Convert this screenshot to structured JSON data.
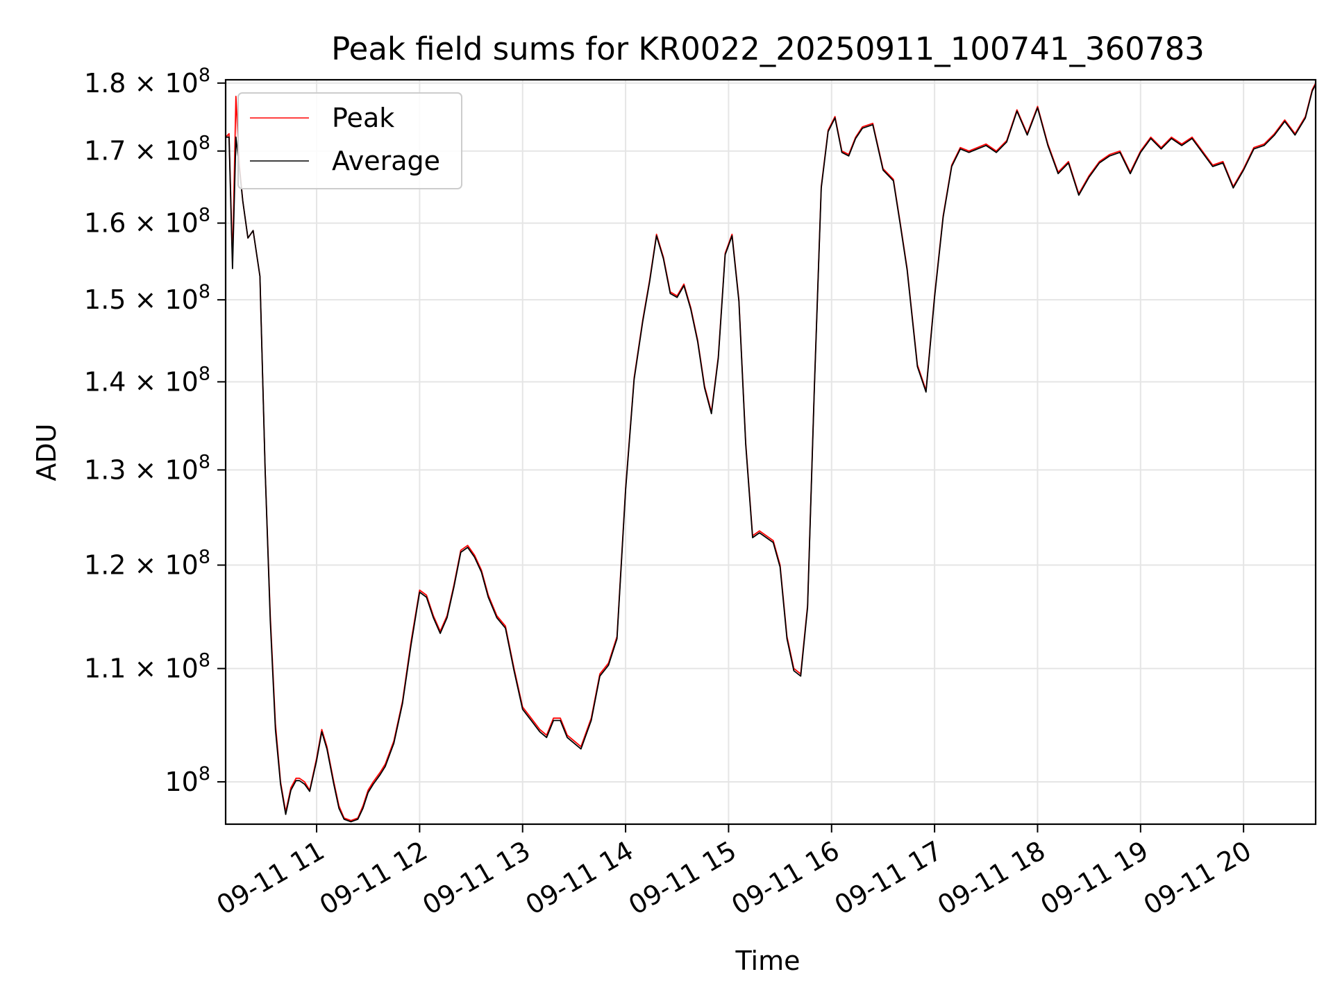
{
  "chart_data": {
    "type": "line",
    "title": "Peak field sums for KR0022_20250911_100741_360783",
    "xlabel": "Time",
    "ylabel": "ADU",
    "x_scale": "time",
    "y_scale": "log",
    "xlim": [
      "2025-09-11 10:07",
      "2025-09-11 20:42"
    ],
    "ylim": [
      96500000,
      180500000
    ],
    "grid": true,
    "legend_position": "upper-left",
    "x_ticks": [
      {
        "value": "2025-09-11 11:00",
        "label": "09-11 11"
      },
      {
        "value": "2025-09-11 12:00",
        "label": "09-11 12"
      },
      {
        "value": "2025-09-11 13:00",
        "label": "09-11 13"
      },
      {
        "value": "2025-09-11 14:00",
        "label": "09-11 14"
      },
      {
        "value": "2025-09-11 15:00",
        "label": "09-11 15"
      },
      {
        "value": "2025-09-11 16:00",
        "label": "09-11 16"
      },
      {
        "value": "2025-09-11 17:00",
        "label": "09-11 17"
      },
      {
        "value": "2025-09-11 18:00",
        "label": "09-11 18"
      },
      {
        "value": "2025-09-11 19:00",
        "label": "09-11 19"
      },
      {
        "value": "2025-09-11 20:00",
        "label": "09-11 20"
      }
    ],
    "y_ticks": [
      {
        "value": 100000000,
        "base": "10",
        "exp": "8"
      },
      {
        "value": 110000000,
        "base": "1.1 × 10",
        "exp": "8"
      },
      {
        "value": 120000000,
        "base": "1.2 × 10",
        "exp": "8"
      },
      {
        "value": 130000000,
        "base": "1.3 × 10",
        "exp": "8"
      },
      {
        "value": 140000000,
        "base": "1.4 × 10",
        "exp": "8"
      },
      {
        "value": 150000000,
        "base": "1.5 × 10",
        "exp": "8"
      },
      {
        "value": 160000000,
        "base": "1.6 × 10",
        "exp": "8"
      },
      {
        "value": 170000000,
        "base": "1.7 × 10",
        "exp": "8"
      },
      {
        "value": 180000000,
        "base": "1.8 × 10",
        "exp": "8"
      }
    ],
    "x": [
      "2025-09-11 10:07",
      "2025-09-11 10:09",
      "2025-09-11 10:11",
      "2025-09-11 10:13",
      "2025-09-11 10:15",
      "2025-09-11 10:17",
      "2025-09-11 10:20",
      "2025-09-11 10:23",
      "2025-09-11 10:27",
      "2025-09-11 10:30",
      "2025-09-11 10:33",
      "2025-09-11 10:36",
      "2025-09-11 10:39",
      "2025-09-11 10:42",
      "2025-09-11 10:45",
      "2025-09-11 10:48",
      "2025-09-11 10:50",
      "2025-09-11 10:53",
      "2025-09-11 10:56",
      "2025-09-11 11:00",
      "2025-09-11 11:03",
      "2025-09-11 11:06",
      "2025-09-11 11:10",
      "2025-09-11 11:13",
      "2025-09-11 11:16",
      "2025-09-11 11:20",
      "2025-09-11 11:24",
      "2025-09-11 11:27",
      "2025-09-11 11:30",
      "2025-09-11 11:33",
      "2025-09-11 11:37",
      "2025-09-11 11:40",
      "2025-09-11 11:45",
      "2025-09-11 11:50",
      "2025-09-11 11:55",
      "2025-09-11 12:00",
      "2025-09-11 12:04",
      "2025-09-11 12:08",
      "2025-09-11 12:12",
      "2025-09-11 12:16",
      "2025-09-11 12:20",
      "2025-09-11 12:24",
      "2025-09-11 12:28",
      "2025-09-11 12:32",
      "2025-09-11 12:36",
      "2025-09-11 12:40",
      "2025-09-11 12:45",
      "2025-09-11 12:50",
      "2025-09-11 12:55",
      "2025-09-11 13:00",
      "2025-09-11 13:05",
      "2025-09-11 13:10",
      "2025-09-11 13:14",
      "2025-09-11 13:18",
      "2025-09-11 13:22",
      "2025-09-11 13:26",
      "2025-09-11 13:30",
      "2025-09-11 13:34",
      "2025-09-11 13:40",
      "2025-09-11 13:45",
      "2025-09-11 13:50",
      "2025-09-11 13:55",
      "2025-09-11 14:00",
      "2025-09-11 14:05",
      "2025-09-11 14:10",
      "2025-09-11 14:14",
      "2025-09-11 14:18",
      "2025-09-11 14:22",
      "2025-09-11 14:26",
      "2025-09-11 14:30",
      "2025-09-11 14:34",
      "2025-09-11 14:38",
      "2025-09-11 14:42",
      "2025-09-11 14:46",
      "2025-09-11 14:50",
      "2025-09-11 14:54",
      "2025-09-11 14:58",
      "2025-09-11 15:02",
      "2025-09-11 15:06",
      "2025-09-11 15:10",
      "2025-09-11 15:14",
      "2025-09-11 15:18",
      "2025-09-11 15:22",
      "2025-09-11 15:26",
      "2025-09-11 15:30",
      "2025-09-11 15:34",
      "2025-09-11 15:38",
      "2025-09-11 15:42",
      "2025-09-11 15:46",
      "2025-09-11 15:50",
      "2025-09-11 15:54",
      "2025-09-11 15:58",
      "2025-09-11 16:02",
      "2025-09-11 16:06",
      "2025-09-11 16:10",
      "2025-09-11 16:14",
      "2025-09-11 16:18",
      "2025-09-11 16:24",
      "2025-09-11 16:30",
      "2025-09-11 16:36",
      "2025-09-11 16:40",
      "2025-09-11 16:44",
      "2025-09-11 16:50",
      "2025-09-11 16:55",
      "2025-09-11 17:00",
      "2025-09-11 17:05",
      "2025-09-11 17:10",
      "2025-09-11 17:15",
      "2025-09-11 17:20",
      "2025-09-11 17:25",
      "2025-09-11 17:30",
      "2025-09-11 17:36",
      "2025-09-11 17:42",
      "2025-09-11 17:48",
      "2025-09-11 17:54",
      "2025-09-11 18:00",
      "2025-09-11 18:06",
      "2025-09-11 18:12",
      "2025-09-11 18:18",
      "2025-09-11 18:24",
      "2025-09-11 18:30",
      "2025-09-11 18:36",
      "2025-09-11 18:42",
      "2025-09-11 18:48",
      "2025-09-11 18:54",
      "2025-09-11 19:00",
      "2025-09-11 19:06",
      "2025-09-11 19:12",
      "2025-09-11 19:18",
      "2025-09-11 19:24",
      "2025-09-11 19:30",
      "2025-09-11 19:36",
      "2025-09-11 19:42",
      "2025-09-11 19:48",
      "2025-09-11 19:54",
      "2025-09-11 20:00",
      "2025-09-11 20:06",
      "2025-09-11 20:12",
      "2025-09-11 20:18",
      "2025-09-11 20:24",
      "2025-09-11 20:30",
      "2025-09-11 20:36",
      "2025-09-11 20:40",
      "2025-09-11 20:42"
    ],
    "series": [
      {
        "name": "Peak",
        "color": "#ff0000",
        "values": [
          172000000,
          172500000,
          155000000,
          178000000,
          168000000,
          163000000,
          158000000,
          159000000,
          153000000,
          130000000,
          115000000,
          105000000,
          100000000,
          97500000,
          99500000,
          100300000,
          100300000,
          100000000,
          99300000,
          102000000,
          104500000,
          103000000,
          100000000,
          98000000,
          97000000,
          96800000,
          97000000,
          98000000,
          99300000,
          100000000,
          100800000,
          101500000,
          103500000,
          107000000,
          112500000,
          117500000,
          117000000,
          115000000,
          113500000,
          115000000,
          118000000,
          121500000,
          122000000,
          121000000,
          119500000,
          117000000,
          115000000,
          114000000,
          110000000,
          106500000,
          105500000,
          104500000,
          104000000,
          105500000,
          105500000,
          104000000,
          103500000,
          103000000,
          105500000,
          109500000,
          110500000,
          113000000,
          128000000,
          140500000,
          147500000,
          152500000,
          158500000,
          155500000,
          151000000,
          150500000,
          152000000,
          149000000,
          145000000,
          139500000,
          136500000,
          143000000,
          156000000,
          158500000,
          150000000,
          133000000,
          123000000,
          123500000,
          123000000,
          122500000,
          120000000,
          113000000,
          110000000,
          109500000,
          116000000,
          139500000,
          165000000,
          173000000,
          175000000,
          170000000,
          169500000,
          172000000,
          173500000,
          174000000,
          167500000,
          166000000,
          160000000,
          154000000,
          142000000,
          139000000,
          150500000,
          161000000,
          168000000,
          170500000,
          170000000,
          170500000,
          171000000,
          170000000,
          171500000,
          176000000,
          172500000,
          176500000,
          171000000,
          167000000,
          168500000,
          164000000,
          166500000,
          168500000,
          169500000,
          170000000,
          167000000,
          170000000,
          172000000,
          170500000,
          172000000,
          171000000,
          172000000,
          170000000,
          168000000,
          168500000,
          165000000,
          167500000,
          170500000,
          171000000,
          172500000,
          174500000,
          172500000,
          175000000,
          179000000,
          180000000
        ]
      },
      {
        "name": "Average",
        "color": "#000000",
        "values": [
          172000000,
          172000000,
          154000000,
          172000000,
          167500000,
          163000000,
          158000000,
          159000000,
          153000000,
          130000000,
          114500000,
          104500000,
          99800000,
          97300000,
          99300000,
          100100000,
          100100000,
          99800000,
          99200000,
          101800000,
          104300000,
          102800000,
          99800000,
          97800000,
          96900000,
          96700000,
          96900000,
          97800000,
          99100000,
          99800000,
          100600000,
          101300000,
          103300000,
          106800000,
          112200000,
          117300000,
          116800000,
          114800000,
          113300000,
          114800000,
          117800000,
          121300000,
          121800000,
          120800000,
          119300000,
          116800000,
          114800000,
          113800000,
          109800000,
          106300000,
          105300000,
          104300000,
          103800000,
          105300000,
          105300000,
          103800000,
          103300000,
          102800000,
          105300000,
          109300000,
          110300000,
          112800000,
          127800000,
          140300000,
          147300000,
          152300000,
          158300000,
          155300000,
          150800000,
          150300000,
          151800000,
          148800000,
          144800000,
          139300000,
          136300000,
          142800000,
          155800000,
          158300000,
          149800000,
          132800000,
          122800000,
          123300000,
          122800000,
          122300000,
          119800000,
          112800000,
          109800000,
          109300000,
          115800000,
          139300000,
          164800000,
          172800000,
          174800000,
          169800000,
          169300000,
          171800000,
          173300000,
          173800000,
          167300000,
          165800000,
          159800000,
          153800000,
          141800000,
          138800000,
          150300000,
          160800000,
          167800000,
          170300000,
          169800000,
          170300000,
          170800000,
          169800000,
          171300000,
          175800000,
          172300000,
          176300000,
          170800000,
          166800000,
          168300000,
          163800000,
          166300000,
          168300000,
          169300000,
          169800000,
          166800000,
          169800000,
          171800000,
          170300000,
          171800000,
          170800000,
          171800000,
          169800000,
          167800000,
          168300000,
          164800000,
          167300000,
          170300000,
          170800000,
          172300000,
          174300000,
          172300000,
          174800000,
          178800000,
          179800000
        ]
      }
    ]
  }
}
